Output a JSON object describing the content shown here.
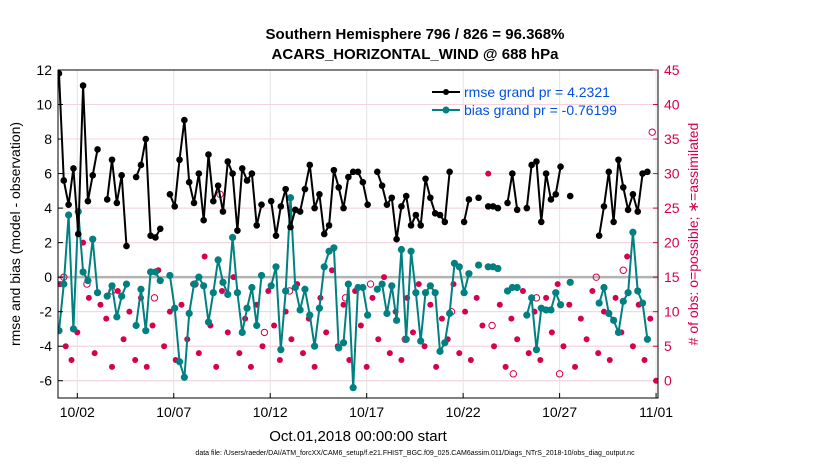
{
  "chart_data": {
    "type": "line",
    "title": "Southern Hemisphere 796 / 826 = 96.368%",
    "subtitle": "ACARS_HORIZONTAL_WIND @ 688 hPa",
    "xlabel": "Oct.01,2018 00:00:00 start",
    "ylabel": "rmse and bias (model - observation)",
    "y2label": "# of obs: o=possible; ∗=assimilated",
    "x_tick_labels": [
      "10/02",
      "10/07",
      "10/12",
      "10/17",
      "10/22",
      "10/27",
      "11/01"
    ],
    "x_tick_days": [
      1,
      6,
      11,
      16,
      21,
      26,
      31
    ],
    "xlim": [
      0,
      31.1
    ],
    "ylim": [
      -7,
      12
    ],
    "y_ticks": [
      -6,
      -4,
      -2,
      0,
      2,
      4,
      6,
      8,
      10,
      12
    ],
    "y2lim": [
      -2.5,
      45
    ],
    "y2_ticks": [
      0,
      5,
      10,
      15,
      20,
      25,
      30,
      35,
      40,
      45
    ],
    "zero_line": 0,
    "grid": true,
    "legend_position": "top-right",
    "footer": "data file: /Users/raeder/DAI/ATM_forcXX/CAM6_setup/f.e21.FHIST_BGC.f09_025.CAM6assim.011/Diags_NTrS_2018-10/obs_diag_output.nc",
    "colors": {
      "rmse": "#000000",
      "bias": "#008080",
      "obs": "#d6004f",
      "zero": "#b3b3b3"
    },
    "series": [
      {
        "name": "rmse grand pr = 4.2321",
        "values": [
          11.8,
          5.6,
          4.2,
          6.3,
          2.5,
          11.1,
          4.4,
          5.9,
          7.4,
          null,
          4.5,
          6.8,
          4.3,
          5.9,
          1.8,
          null,
          5.8,
          6.5,
          8.0,
          2.4,
          2.3,
          2.8,
          null,
          4.8,
          4.1,
          6.8,
          9.1,
          5.5,
          4.3,
          6.0,
          3.3,
          7.1,
          4.4,
          5.3,
          3.8,
          6.7,
          6.0,
          2.7,
          6.3,
          5.6,
          6.0,
          3.0,
          4.2,
          null,
          4.4,
          2.4,
          4.1,
          5.1,
          2.9,
          3.9,
          3.8,
          5.1,
          6.5,
          4.0,
          4.8,
          2.5,
          3.0,
          6.2,
          5.2,
          4.0,
          5.8,
          6.1,
          6.1,
          5.5,
          4.2,
          null,
          6.1,
          5.3,
          4.2,
          4.6,
          2.2,
          4.1,
          4.7,
          3.0,
          3.6,
          3.0,
          5.7,
          4.6,
          3.7,
          3.6,
          3.2,
          6.1,
          null,
          null,
          3.2,
          4.5,
          null,
          4.6,
          null,
          4.1,
          4.1,
          4.0,
          null,
          4.3,
          6.0,
          3.9,
          null,
          4.0,
          6.5,
          6.7,
          3.2,
          6.0,
          4.5,
          4.8,
          6.4,
          null,
          4.7,
          null,
          null,
          null,
          null,
          null,
          2.4,
          4.1,
          6.1,
          3.2,
          6.8,
          5.2,
          3.9,
          4.8,
          3.8,
          6.0,
          6.1
        ]
      },
      {
        "name": "bias grand pr = -0.76199",
        "values": [
          -3.1,
          -0.4,
          3.6,
          -3.0,
          3.8,
          0.3,
          -0.2,
          2.2,
          -0.9,
          null,
          -1.1,
          -0.5,
          -2.3,
          -1.1,
          -0.4,
          null,
          -2.8,
          -0.7,
          -3.1,
          0.3,
          0.3,
          -0.2,
          null,
          0.1,
          -1.8,
          -4.9,
          -5.8,
          -2.1,
          -0.4,
          0.0,
          -0.5,
          -2.6,
          -0.9,
          1.0,
          -0.3,
          -1.0,
          2.3,
          -0.9,
          -3.2,
          -1.8,
          -0.6,
          -2.8,
          0.1,
          null,
          -0.5,
          0.6,
          -4.2,
          -0.8,
          4.6,
          -0.6,
          -1.9,
          -0.7,
          -2.2,
          -4.0,
          -1.8,
          0.6,
          1.5,
          1.7,
          -4.1,
          -3.8,
          -0.4,
          -6.4,
          -0.6,
          -0.6,
          -2.2,
          null,
          -0.7,
          -0.4,
          -2.1,
          -0.5,
          -2.5,
          1.6,
          -3.6,
          1.5,
          -0.9,
          -3.7,
          -0.9,
          -0.5,
          -0.9,
          -4.3,
          -3.8,
          -2.1,
          0.8,
          0.6,
          -0.9,
          0.2,
          null,
          0.7,
          null,
          0.6,
          0.6,
          0.5,
          null,
          -0.8,
          -0.6,
          -0.6,
          null,
          -2.2,
          -1.2,
          -4.2,
          -1.8,
          -1.9,
          -1.9,
          -0.9,
          -1.6,
          null,
          -0.3,
          null,
          null,
          null,
          null,
          null,
          -1.5,
          -0.6,
          -2.1,
          -2.5,
          -3.2,
          -1.4,
          -0.9,
          2.6,
          -0.8,
          -1.5,
          -3.6
        ]
      }
    ],
    "obs_assimilated": [
      [
        0.1,
        14
      ],
      [
        0.4,
        5
      ],
      [
        0.7,
        3
      ],
      [
        1.0,
        7
      ],
      [
        1.3,
        20
      ],
      [
        1.6,
        12
      ],
      [
        1.9,
        4
      ],
      [
        2.2,
        11
      ],
      [
        2.5,
        9
      ],
      [
        2.8,
        2
      ],
      [
        3.1,
        13
      ],
      [
        3.4,
        6
      ],
      [
        3.7,
        10
      ],
      [
        4.0,
        3
      ],
      [
        4.3,
        12
      ],
      [
        4.6,
        2
      ],
      [
        4.9,
        8
      ],
      [
        5.2,
        16
      ],
      [
        5.5,
        5
      ],
      [
        5.8,
        10
      ],
      [
        6.1,
        3
      ],
      [
        6.4,
        11
      ],
      [
        6.7,
        6
      ],
      [
        7.0,
        14
      ],
      [
        7.3,
        4
      ],
      [
        7.6,
        18
      ],
      [
        7.9,
        8
      ],
      [
        8.2,
        2
      ],
      [
        8.5,
        13
      ],
      [
        8.8,
        7
      ],
      [
        9.1,
        15
      ],
      [
        9.4,
        4
      ],
      [
        9.7,
        9
      ],
      [
        10.0,
        2
      ],
      [
        10.3,
        11
      ],
      [
        10.6,
        5
      ],
      [
        10.9,
        13
      ],
      [
        11.2,
        8
      ],
      [
        11.5,
        3
      ],
      [
        11.8,
        10
      ],
      [
        12.1,
        6
      ],
      [
        12.4,
        14
      ],
      [
        12.7,
        4
      ],
      [
        13.0,
        9
      ],
      [
        13.3,
        2
      ],
      [
        13.6,
        12
      ],
      [
        13.9,
        7
      ],
      [
        14.2,
        16
      ],
      [
        14.5,
        5
      ],
      [
        14.8,
        11
      ],
      [
        15.1,
        3
      ],
      [
        15.4,
        13
      ],
      [
        15.7,
        8
      ],
      [
        16.0,
        2
      ],
      [
        16.3,
        12
      ],
      [
        16.6,
        6
      ],
      [
        16.9,
        15
      ],
      [
        17.2,
        4
      ],
      [
        17.5,
        10
      ],
      [
        17.8,
        3
      ],
      [
        18.1,
        12
      ],
      [
        18.4,
        7
      ],
      [
        18.7,
        14
      ],
      [
        19.0,
        5
      ],
      [
        19.3,
        11
      ],
      [
        19.6,
        2
      ],
      [
        19.9,
        9
      ],
      [
        20.2,
        6
      ],
      [
        20.5,
        14
      ],
      [
        20.8,
        4
      ],
      [
        21.1,
        10
      ],
      [
        21.4,
        3
      ],
      [
        21.7,
        12
      ],
      [
        22.0,
        8
      ],
      [
        22.3,
        30
      ],
      [
        22.6,
        5
      ],
      [
        22.9,
        11
      ],
      [
        23.2,
        2
      ],
      [
        23.5,
        9
      ],
      [
        23.8,
        6
      ],
      [
        24.1,
        13
      ],
      [
        24.4,
        4
      ],
      [
        24.7,
        10
      ],
      [
        25.0,
        3
      ],
      [
        25.3,
        12
      ],
      [
        25.6,
        7
      ],
      [
        25.9,
        14
      ],
      [
        26.2,
        5
      ],
      [
        26.5,
        11
      ],
      [
        26.8,
        2
      ],
      [
        27.1,
        9
      ],
      [
        27.4,
        6
      ],
      [
        27.7,
        13
      ],
      [
        28.0,
        4
      ],
      [
        28.3,
        10
      ],
      [
        28.6,
        3
      ],
      [
        28.9,
        12
      ],
      [
        29.2,
        7
      ],
      [
        29.5,
        18
      ],
      [
        29.8,
        5
      ],
      [
        30.1,
        11
      ],
      [
        30.4,
        3
      ],
      [
        30.7,
        9
      ],
      [
        31.0,
        0
      ]
    ],
    "obs_possible": [
      [
        0.3,
        15
      ],
      [
        1.5,
        14
      ],
      [
        2.8,
        13
      ],
      [
        5.0,
        12
      ],
      [
        7.1,
        14
      ],
      [
        8.4,
        27
      ],
      [
        10.7,
        7
      ],
      [
        12.0,
        13
      ],
      [
        14.9,
        12
      ],
      [
        16.2,
        14
      ],
      [
        18.0,
        6
      ],
      [
        20.4,
        10
      ],
      [
        22.5,
        8
      ],
      [
        23.6,
        1
      ],
      [
        24.8,
        12
      ],
      [
        26.0,
        1
      ],
      [
        27.9,
        15
      ],
      [
        29.3,
        16
      ],
      [
        30.8,
        36
      ]
    ]
  }
}
